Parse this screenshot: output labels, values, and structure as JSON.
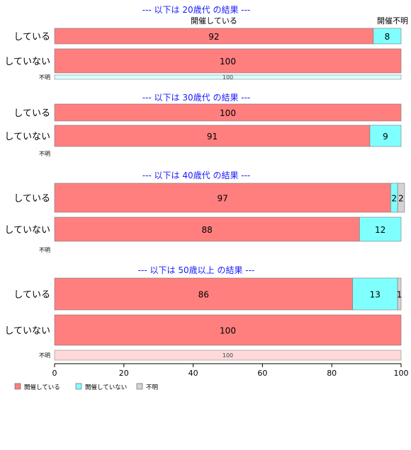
{
  "chart_data": {
    "type": "bar",
    "orientation": "horizontal",
    "stacked": true,
    "xlim": [
      0,
      100
    ],
    "xticks": [
      "0",
      "20",
      "40",
      "60",
      "80",
      "100"
    ],
    "colors": [
      "#ff7f7f",
      "#80ffff",
      "#d3d3d3"
    ],
    "legend": {
      "placement": "bottom-left",
      "entries": [
        "開催している",
        "開催していない",
        "不明"
      ]
    },
    "top_labels": [
      "開催している",
      "開催不明"
    ],
    "panels": [
      {
        "title": "--- 以下は 20歳代 の結果 ---",
        "rows": [
          {
            "label": "している",
            "values": [
              92,
              8,
              0
            ],
            "row_size": "normal"
          },
          {
            "label": "していない",
            "values": [
              100,
              0,
              0
            ],
            "row_size": "normal"
          },
          {
            "label": "不明",
            "values": [
              0,
              100,
              0
            ],
            "row_size": "thin",
            "thin_fill": "#d9ffff"
          }
        ]
      },
      {
        "title": "--- 以下は 30歳代 の結果 ---",
        "rows": [
          {
            "label": "している",
            "values": [
              100,
              0,
              0
            ],
            "row_size": "normal"
          },
          {
            "label": "していない",
            "values": [
              91,
              9,
              0
            ],
            "row_size": "normal"
          },
          {
            "label": "不明",
            "values": [
              0,
              0,
              0
            ],
            "row_size": "thin"
          }
        ]
      },
      {
        "title": "--- 以下は 40歳代 の結果 ---",
        "rows": [
          {
            "label": "している",
            "values": [
              97,
              2,
              2
            ],
            "row_size": "normal"
          },
          {
            "label": "していない",
            "values": [
              88,
              12,
              0
            ],
            "row_size": "normal"
          },
          {
            "label": "不明",
            "values": [
              0,
              0,
              0
            ],
            "row_size": "thin"
          }
        ]
      },
      {
        "title": "--- 以下は 50歳以上 の結果 ---",
        "rows": [
          {
            "label": "している",
            "values": [
              86,
              13,
              1
            ],
            "row_size": "normal"
          },
          {
            "label": "していない",
            "values": [
              100,
              0,
              0
            ],
            "row_size": "normal"
          },
          {
            "label": "不明",
            "values": [
              100,
              0,
              0
            ],
            "row_size": "thin",
            "thin_fill": "#ffd9d9"
          }
        ]
      }
    ]
  }
}
